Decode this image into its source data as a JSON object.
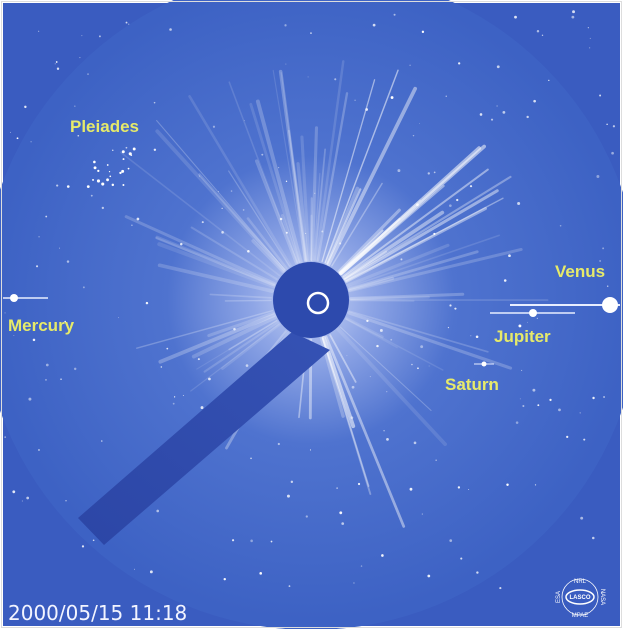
{
  "labels": {
    "pleiades": "Pleiades",
    "mercury": "Mercury",
    "venus": "Venus",
    "jupiter": "Jupiter",
    "saturn": "Saturn"
  },
  "timestamp": "2000/05/15 11:18",
  "logo": {
    "top": "NRL",
    "center": "LASCO",
    "left": "ESA",
    "right": "NASA",
    "bottom": "MPAE"
  }
}
